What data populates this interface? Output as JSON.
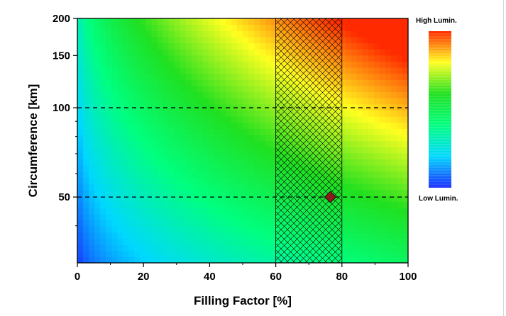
{
  "chart_data": {
    "type": "heatmap",
    "title": "",
    "xlabel": "Filling Factor [%]",
    "ylabel": "Circumference [km]",
    "xlim": [
      0,
      100
    ],
    "ylim": [
      30,
      200
    ],
    "y_scale": "log",
    "x_ticks": [
      "0",
      "20",
      "40",
      "60",
      "80",
      "100"
    ],
    "x_tick_values": [
      0,
      20,
      40,
      60,
      80,
      100
    ],
    "y_ticks": [
      "50",
      "100",
      "150",
      "200"
    ],
    "y_tick_values": [
      50,
      100,
      150,
      200
    ],
    "colorbar": {
      "high_label": "High Lumin.",
      "low_label": "Low Lumin.",
      "colors": [
        "#1a2bff",
        "#00d8ff",
        "#00ff7f",
        "#20e020",
        "#ffff20",
        "#ff2a00"
      ]
    },
    "reference_lines": [
      {
        "axis": "y",
        "value": 50,
        "style": "dashed"
      },
      {
        "axis": "y",
        "value": 100,
        "style": "dashed"
      }
    ],
    "shaded_band": {
      "x_from": 60,
      "x_to": 80,
      "pattern": "crosshatch"
    },
    "marker": {
      "x": 76.5,
      "y": 50,
      "shape": "diamond",
      "color": "#8b1a1a"
    },
    "grid": false
  }
}
